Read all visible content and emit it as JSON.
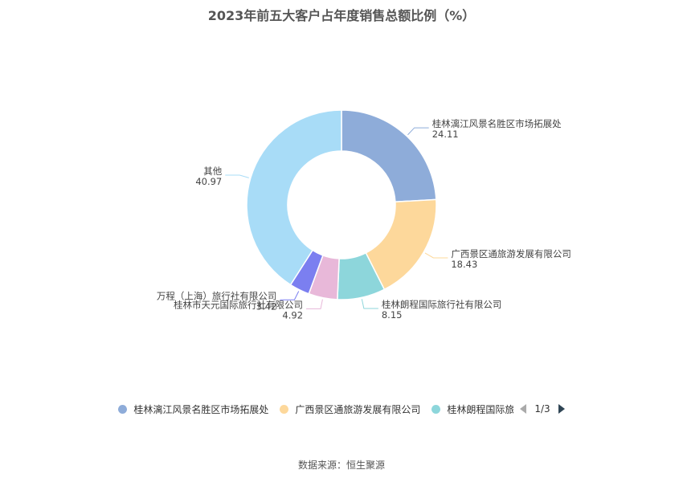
{
  "chart_data": {
    "type": "pie",
    "title": "2023年前五大客户占年度销售总额比例（%）",
    "slices": [
      {
        "label": "桂林漓江风景名胜区市场拓展处",
        "value_text": "24.11",
        "value": 24.11,
        "color": "#8eacd9"
      },
      {
        "label": "广西景区通旅游发展有限公司",
        "value_text": "18.43",
        "value": 18.43,
        "color": "#fdd89b"
      },
      {
        "label": "桂林朗程国际旅行社有限公司",
        "value_text": "8.15",
        "value": 8.15,
        "color": "#8dd6db"
      },
      {
        "label": "桂林市天元国际旅行社有限公司",
        "value_text": "4.92",
        "value": 4.92,
        "color": "#e8b8d9"
      },
      {
        "label": "万程（上海）旅行社有限公司",
        "value_text": "3.42",
        "value": 3.42,
        "color": "#7b7ff0"
      },
      {
        "label": "其他",
        "value_text": "40.97",
        "value": 40.97,
        "color": "#a8dcf7"
      }
    ],
    "legend_position": "bottom",
    "donut": true
  },
  "legend": {
    "items": [
      {
        "label": "桂林漓江风景名胜区市场拓展处",
        "color": "#8eacd9"
      },
      {
        "label": "广西景区通旅游发展有限公司",
        "color": "#fdd89b"
      },
      {
        "label": "桂林朗程国际旅行社有限公司",
        "color": "#8dd6db"
      }
    ],
    "page_info": "1/3"
  },
  "source": "数据来源：恒生聚源"
}
